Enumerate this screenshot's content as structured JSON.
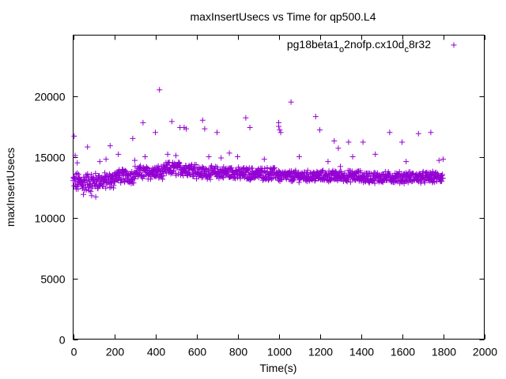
{
  "chart_data": {
    "type": "scatter",
    "title": "maxInsertUsecs vs Time for qp500.L4",
    "xlabel": "Time(s)",
    "ylabel": "maxInsertUsecs",
    "xlim": [
      0,
      2000
    ],
    "ylim": [
      0,
      25000
    ],
    "x_ticks": [
      "0",
      "200",
      "400",
      "600",
      "800",
      "1000",
      "1200",
      "1400",
      "1600",
      "1800",
      "2000"
    ],
    "y_ticks": [
      "0",
      "5000",
      "10000",
      "15000",
      "20000"
    ],
    "x_tick_values": [
      0,
      200,
      400,
      600,
      800,
      1000,
      1200,
      1400,
      1600,
      1800,
      2000
    ],
    "y_tick_values": [
      0,
      5000,
      10000,
      15000,
      20000
    ],
    "grid": false,
    "legend_position": "top-right",
    "marker": "+",
    "series": [
      {
        "name_parts": [
          "pg18beta1",
          "o",
          "2nofp.cx10d",
          "c",
          "8r32"
        ],
        "color": "#9400D3",
        "main_band": {
          "x_range": [
            0,
            1800
          ],
          "segments": [
            {
              "x": [
                0,
                100
              ],
              "y_center": 12900,
              "y_spread": 700
            },
            {
              "x": [
                100,
                200
              ],
              "y_center": 13000,
              "y_spread": 600
            },
            {
              "x": [
                200,
                300
              ],
              "y_center": 13400,
              "y_spread": 500
            },
            {
              "x": [
                300,
                450
              ],
              "y_center": 13700,
              "y_spread": 500
            },
            {
              "x": [
                450,
                600
              ],
              "y_center": 14000,
              "y_spread": 500
            },
            {
              "x": [
                600,
                800
              ],
              "y_center": 13700,
              "y_spread": 450
            },
            {
              "x": [
                800,
                1000
              ],
              "y_center": 13600,
              "y_spread": 450
            },
            {
              "x": [
                1000,
                1400
              ],
              "y_center": 13400,
              "y_spread": 400
            },
            {
              "x": [
                1400,
                1800
              ],
              "y_center": 13300,
              "y_spread": 400
            }
          ],
          "sample_interval": 1.5
        },
        "outliers": [
          [
            5,
            16700
          ],
          [
            10,
            15100
          ],
          [
            20,
            14500
          ],
          [
            50,
            11900
          ],
          [
            70,
            15800
          ],
          [
            90,
            11800
          ],
          [
            110,
            11700
          ],
          [
            130,
            14600
          ],
          [
            160,
            14800
          ],
          [
            180,
            15900
          ],
          [
            220,
            15200
          ],
          [
            290,
            16500
          ],
          [
            300,
            14700
          ],
          [
            340,
            17800
          ],
          [
            350,
            15000
          ],
          [
            400,
            17000
          ],
          [
            420,
            20500
          ],
          [
            460,
            15200
          ],
          [
            480,
            17900
          ],
          [
            500,
            15100
          ],
          [
            520,
            17400
          ],
          [
            540,
            17400
          ],
          [
            550,
            17300
          ],
          [
            630,
            18000
          ],
          [
            640,
            17300
          ],
          [
            660,
            15000
          ],
          [
            700,
            17000
          ],
          [
            720,
            14900
          ],
          [
            760,
            15300
          ],
          [
            800,
            15000
          ],
          [
            840,
            18200
          ],
          [
            860,
            17400
          ],
          [
            930,
            14800
          ],
          [
            1000,
            17800
          ],
          [
            1000,
            17500
          ],
          [
            1005,
            17200
          ],
          [
            1010,
            17000
          ],
          [
            1060,
            19500
          ],
          [
            1100,
            15000
          ],
          [
            1180,
            18300
          ],
          [
            1200,
            17200
          ],
          [
            1240,
            14600
          ],
          [
            1270,
            16300
          ],
          [
            1290,
            15700
          ],
          [
            1300,
            14200
          ],
          [
            1340,
            16200
          ],
          [
            1360,
            15000
          ],
          [
            1410,
            16200
          ],
          [
            1470,
            15200
          ],
          [
            1540,
            17000
          ],
          [
            1600,
            16200
          ],
          [
            1620,
            14600
          ],
          [
            1680,
            16900
          ],
          [
            1740,
            17000
          ],
          [
            1780,
            14700
          ],
          [
            1800,
            14800
          ]
        ]
      }
    ]
  }
}
